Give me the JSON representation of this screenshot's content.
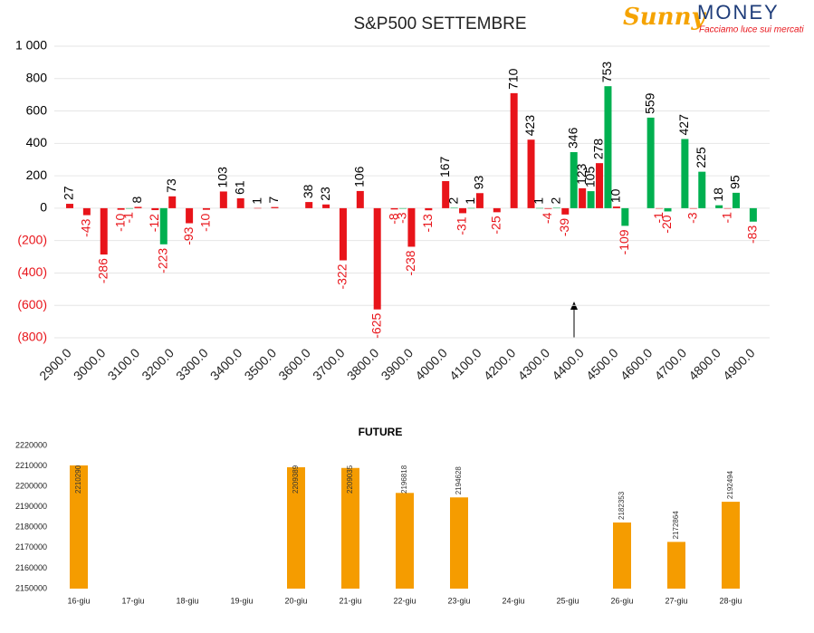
{
  "logo": {
    "brand1": "Sunny",
    "brand2": "MONEY",
    "tagline": "Facciamo luce sui mercati"
  },
  "chart_data": [
    {
      "type": "bar",
      "title": "S&P500 SETTEMBRE",
      "x": [
        2900,
        2950,
        3000,
        3050,
        3075,
        3100,
        3150,
        3175,
        3200,
        3250,
        3300,
        3350,
        3400,
        3450,
        3500,
        3600,
        3650,
        3700,
        3750,
        3800,
        3850,
        3875,
        3900,
        3950,
        4000,
        4025,
        4050,
        4075,
        4100,
        4150,
        4200,
        4250,
        4275,
        4300,
        4325,
        4350,
        4375,
        4400,
        4425,
        4450,
        4475,
        4500,
        4525,
        4600,
        4625,
        4650,
        4700,
        4725,
        4750,
        4800,
        4825,
        4850,
        4900
      ],
      "values": [
        27,
        -43,
        -286,
        -10,
        -1,
        8,
        -12,
        -223,
        73,
        -93,
        -10,
        103,
        61,
        1,
        7,
        38,
        23,
        -322,
        106,
        -625,
        -8,
        -3,
        -238,
        -13,
        167,
        2,
        -31,
        1,
        93,
        -25,
        710,
        423,
        1,
        -4,
        2,
        -39,
        346,
        123,
        105,
        278,
        753,
        10,
        -109,
        559,
        -1,
        -20,
        427,
        -3,
        225,
        18,
        -1,
        95,
        -83
      ],
      "colors": [
        "#e8141a",
        "#e8141a",
        "#e8141a",
        "#e8141a",
        "#00b050",
        "#e8141a",
        "#e8141a",
        "#00b050",
        "#e8141a",
        "#e8141a",
        "#e8141a",
        "#e8141a",
        "#e8141a",
        "#e8141a",
        "#e8141a",
        "#e8141a",
        "#e8141a",
        "#e8141a",
        "#e8141a",
        "#e8141a",
        "#e8141a",
        "#00b050",
        "#e8141a",
        "#e8141a",
        "#e8141a",
        "#00b050",
        "#e8141a",
        "#00b050",
        "#e8141a",
        "#e8141a",
        "#e8141a",
        "#e8141a",
        "#00b050",
        "#e8141a",
        "#00b050",
        "#e8141a",
        "#00b050",
        "#e8141a",
        "#00b050",
        "#e8141a",
        "#00b050",
        "#e8141a",
        "#00b050",
        "#00b050",
        "#e8141a",
        "#00b050",
        "#00b050",
        "#e8141a",
        "#00b050",
        "#00b050",
        "#e8141a",
        "#00b050",
        "#00b050"
      ],
      "label_colors": {
        "positive": "#000000",
        "negative": "#e8141a"
      },
      "xlim": [
        2855,
        4948
      ],
      "xticks": [
        {
          "value": 2900,
          "label": "2900.0"
        },
        {
          "value": 3000,
          "label": "3000.0"
        },
        {
          "value": 3100,
          "label": "3100.0"
        },
        {
          "value": 3200,
          "label": "3200.0"
        },
        {
          "value": 3300,
          "label": "3300.0"
        },
        {
          "value": 3400,
          "label": "3400.0"
        },
        {
          "value": 3500,
          "label": "3500.0"
        },
        {
          "value": 3600,
          "label": "3600.0"
        },
        {
          "value": 3700,
          "label": "3700.0"
        },
        {
          "value": 3800,
          "label": "3800.0"
        },
        {
          "value": 3900,
          "label": "3900.0"
        },
        {
          "value": 4000,
          "label": "4000.0"
        },
        {
          "value": 4100,
          "label": "4100.0"
        },
        {
          "value": 4200,
          "label": "4200.0"
        },
        {
          "value": 4300,
          "label": "4300.0"
        },
        {
          "value": 4400,
          "label": "4400.0"
        },
        {
          "value": 4500,
          "label": "4500.0"
        },
        {
          "value": 4600,
          "label": "4600.0"
        },
        {
          "value": 4700,
          "label": "4700.0"
        },
        {
          "value": 4800,
          "label": "4800.0"
        },
        {
          "value": 4900,
          "label": "4900.0"
        }
      ],
      "ylim": [
        -800,
        1000
      ],
      "yticks": [
        {
          "value": 1000,
          "label": "1 000"
        },
        800,
        600,
        400,
        200,
        0,
        {
          "value": -200,
          "label": "(200)"
        },
        {
          "value": -400,
          "label": "(400)"
        },
        {
          "value": -600,
          "label": "(600)"
        },
        {
          "value": -800,
          "label": "(800)"
        }
      ],
      "grid": true
    },
    {
      "type": "bar",
      "title": "FUTURE",
      "categories": [
        "16-giu",
        "17-giu",
        "18-giu",
        "19-giu",
        "20-giu",
        "21-giu",
        "22-giu",
        "23-giu",
        "24-giu",
        "25-giu",
        "26-giu",
        "27-giu",
        "28-giu"
      ],
      "values": [
        2210290,
        null,
        null,
        null,
        2209389,
        2209035,
        2196818,
        2194628,
        null,
        null,
        2182353,
        2172864,
        2192494
      ],
      "color": "#f59c00",
      "ylim": [
        2150000,
        2220000
      ],
      "yticks": [
        2150000,
        2160000,
        2170000,
        2180000,
        2190000,
        2200000,
        2210000,
        2220000
      ],
      "grid": false
    }
  ]
}
